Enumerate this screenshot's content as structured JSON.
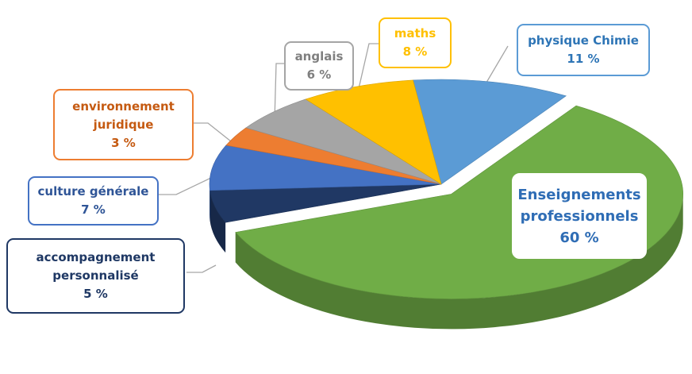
{
  "chart_data": {
    "type": "pie",
    "categories": [
      "physique Chimie",
      "Enseignements professionnels",
      "accompagnement personnalisé",
      "culture générale",
      "environnement juridique",
      "anglais",
      "maths"
    ],
    "values": [
      11,
      60,
      5,
      7,
      3,
      6,
      8
    ],
    "value_labels": [
      "11 %",
      "60 %",
      "5 %",
      "7 %",
      "3 %",
      "6 %",
      "8 %"
    ],
    "colors": [
      "#5b9bd5",
      "#70ad47",
      "#203864",
      "#4472c4",
      "#ed7d31",
      "#a5a5a5",
      "#ffc000"
    ],
    "exploded": [
      false,
      true,
      false,
      false,
      false,
      false,
      false
    ]
  }
}
